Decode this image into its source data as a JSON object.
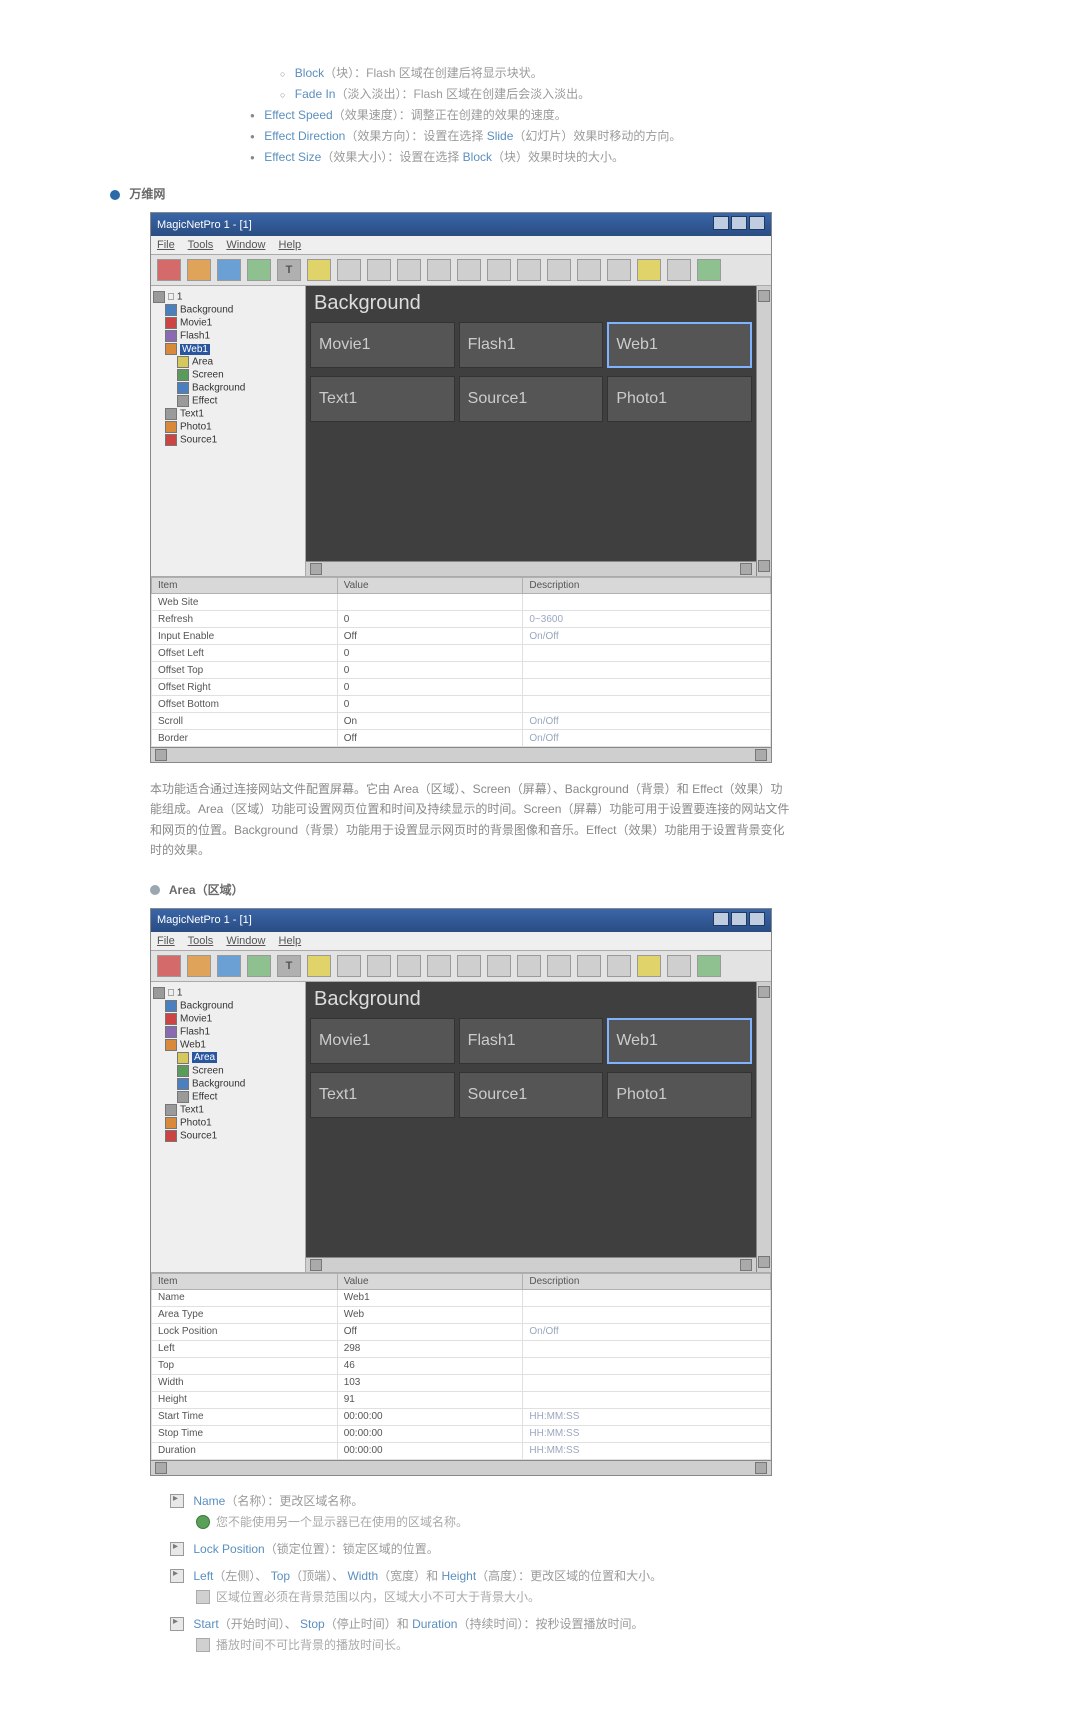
{
  "top_bullets": {
    "block": {
      "kw": "Block",
      "zh": "（块）：Flash 区域在创建后将显示块状。"
    },
    "fadein": {
      "kw": "Fade In",
      "zh": "（淡入淡出）：Flash 区域在创建后会淡入淡出。"
    },
    "speed": {
      "kw": "Effect Speed",
      "zh": "（效果速度）：调整正在创建的效果的速度。"
    },
    "direction": {
      "kw": "Effect Direction",
      "zh1": "（效果方向）：设置在选择 ",
      "kw2": "Slide",
      "zh2": "（幻灯片）效果时移动的方向。"
    },
    "size": {
      "kw": "Effect Size",
      "zh1": "（效果大小）：设置在选择 ",
      "kw2": "Block",
      "zh2": "（块）效果时块的大小。"
    }
  },
  "section_web": "万维网",
  "section_area": "Area（区域）",
  "window": {
    "title": "MagicNetPro 1 - [1]",
    "menus": [
      "File",
      "Tools",
      "Window",
      "Help"
    ],
    "bg_label": "Background",
    "cells_row1": [
      "Movie1",
      "Flash1",
      "Web1"
    ],
    "cells_row2": [
      "Text1",
      "Source1",
      "Photo1"
    ]
  },
  "tree_a": {
    "items": [
      {
        "lvl": 0,
        "ico": "gry",
        "label": "□ 1"
      },
      {
        "lvl": 1,
        "ico": "blu",
        "label": "Background"
      },
      {
        "lvl": 1,
        "ico": "red",
        "label": "Movie1"
      },
      {
        "lvl": 1,
        "ico": "pur",
        "label": "Flash1"
      },
      {
        "lvl": 1,
        "ico": "org",
        "label": "Web1",
        "sel": true
      },
      {
        "lvl": 2,
        "ico": "yel",
        "label": "Area"
      },
      {
        "lvl": 2,
        "ico": "grn",
        "label": "Screen"
      },
      {
        "lvl": 2,
        "ico": "blu",
        "label": "Background"
      },
      {
        "lvl": 2,
        "ico": "gry",
        "label": "Effect"
      },
      {
        "lvl": 1,
        "ico": "gry",
        "label": "Text1"
      },
      {
        "lvl": 1,
        "ico": "org",
        "label": "Photo1"
      },
      {
        "lvl": 1,
        "ico": "red",
        "label": "Source1"
      }
    ]
  },
  "tree_b": {
    "items": [
      {
        "lvl": 0,
        "ico": "gry",
        "label": "□ 1"
      },
      {
        "lvl": 1,
        "ico": "blu",
        "label": "Background"
      },
      {
        "lvl": 1,
        "ico": "red",
        "label": "Movie1"
      },
      {
        "lvl": 1,
        "ico": "pur",
        "label": "Flash1"
      },
      {
        "lvl": 1,
        "ico": "org",
        "label": "Web1"
      },
      {
        "lvl": 2,
        "ico": "yel",
        "label": "Area",
        "sel": true
      },
      {
        "lvl": 2,
        "ico": "grn",
        "label": "Screen"
      },
      {
        "lvl": 2,
        "ico": "blu",
        "label": "Background"
      },
      {
        "lvl": 2,
        "ico": "gry",
        "label": "Effect"
      },
      {
        "lvl": 1,
        "ico": "gry",
        "label": "Text1"
      },
      {
        "lvl": 1,
        "ico": "org",
        "label": "Photo1"
      },
      {
        "lvl": 1,
        "ico": "red",
        "label": "Source1"
      }
    ]
  },
  "grid_headers": {
    "item": "Item",
    "value": "Value",
    "desc": "Description"
  },
  "grid_a": [
    {
      "item": "Web Site",
      "value": "",
      "desc": ""
    },
    {
      "item": "Refresh",
      "value": "0",
      "desc": "0~3600"
    },
    {
      "item": "Input Enable",
      "value": "Off",
      "desc": "On/Off"
    },
    {
      "item": "Offset Left",
      "value": "0",
      "desc": ""
    },
    {
      "item": "Offset Top",
      "value": "0",
      "desc": ""
    },
    {
      "item": "Offset Right",
      "value": "0",
      "desc": ""
    },
    {
      "item": "Offset Bottom",
      "value": "0",
      "desc": ""
    },
    {
      "item": "Scroll",
      "value": "On",
      "desc": "On/Off"
    },
    {
      "item": "Border",
      "value": "Off",
      "desc": "On/Off"
    }
  ],
  "grid_b": [
    {
      "item": "Name",
      "value": "Web1",
      "desc": ""
    },
    {
      "item": "Area Type",
      "value": "Web",
      "desc": ""
    },
    {
      "item": "Lock Position",
      "value": "Off",
      "desc": "On/Off"
    },
    {
      "item": "Left",
      "value": "298",
      "desc": ""
    },
    {
      "item": "Top",
      "value": "46",
      "desc": ""
    },
    {
      "item": "Width",
      "value": "103",
      "desc": ""
    },
    {
      "item": "Height",
      "value": "91",
      "desc": ""
    },
    {
      "item": "Start Time",
      "value": "00:00:00",
      "desc": "HH:MM:SS"
    },
    {
      "item": "Stop Time",
      "value": "00:00:00",
      "desc": "HH:MM:SS"
    },
    {
      "item": "Duration",
      "value": "00:00:00",
      "desc": "HH:MM:SS"
    }
  ],
  "para_web": "本功能适合通过连接网站文件配置屏幕。它由 Area（区域）、Screen（屏幕）、Background（背景）和 Effect（效果）功能组成。Area（区域）功能可设置网页位置和时间及持续显示的时间。Screen（屏幕）功能可用于设置要连接的网站文件和网页的位置。Background（背景）功能用于设置显示网页时的背景图像和音乐。Effect（效果）功能用于设置背景变化时的效果。",
  "defs": {
    "name": {
      "kw": "Name",
      "zh": "（名称）：更改区域名称。"
    },
    "name_note": "您不能使用另一个显示器已在使用的区域名称。",
    "lock": {
      "kw": "Lock Position",
      "zh": "（锁定位置）：锁定区域的位置。"
    },
    "lrtb": {
      "kw1": "Left",
      "z1": "（左侧）、",
      "kw2": "Top",
      "z2": "（顶端）、",
      "kw3": "Width",
      "z3": "（宽度）和 ",
      "kw4": "Height",
      "z4": "（高度）：更改区域的位置和大小。"
    },
    "lrtb_note": "区域位置必须在背景范围以内，区域大小不可大于背景大小。",
    "time": {
      "kw1": "Start",
      "z1": "（开始时间）、",
      "kw2": "Stop",
      "z2": "（停止时间）和 ",
      "kw3": "Duration",
      "z3": "（持续时间）：按秒设置播放时间。"
    },
    "time_note": "播放时间不可比背景的播放时间长。"
  }
}
